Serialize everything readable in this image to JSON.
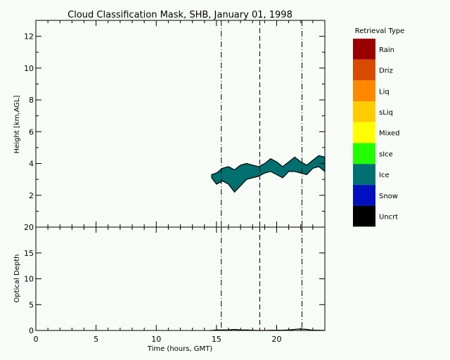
{
  "chart_data": [
    {
      "type": "heatmap",
      "title": "Cloud Classification Mask, SHB, January 01, 1998",
      "xlabel": "",
      "ylabel": "Height [km,AGL]",
      "xlim": [
        0,
        24
      ],
      "ylim": [
        0,
        13
      ],
      "yticks": [
        2,
        4,
        6,
        8,
        10,
        12
      ],
      "legend_title": "Retrieval Type",
      "legend": [
        {
          "label": "Rain",
          "color": "#9a0000"
        },
        {
          "label": "Driz",
          "color": "#d84a00"
        },
        {
          "label": "Liq",
          "color": "#ff8800"
        },
        {
          "label": "sLiq",
          "color": "#ffcc00"
        },
        {
          "label": "Mixed",
          "color": "#ffff00"
        },
        {
          "label": "sIce",
          "color": "#22ff00"
        },
        {
          "label": "Ice",
          "color": "#007070"
        },
        {
          "label": "Snow",
          "color": "#0010c0"
        },
        {
          "label": "Uncrt",
          "color": "#000000"
        }
      ],
      "cloud_class": "Ice",
      "cloud_top_km": [
        [
          14.6,
          3.3
        ],
        [
          15.0,
          3.4
        ],
        [
          15.5,
          3.7
        ],
        [
          16.0,
          3.8
        ],
        [
          16.5,
          3.6
        ],
        [
          17.0,
          3.9
        ],
        [
          17.5,
          4.0
        ],
        [
          18.0,
          3.9
        ],
        [
          18.5,
          3.8
        ],
        [
          19.0,
          4.0
        ],
        [
          19.5,
          4.3
        ],
        [
          20.0,
          4.1
        ],
        [
          20.5,
          3.8
        ],
        [
          21.0,
          4.1
        ],
        [
          21.5,
          4.4
        ],
        [
          22.0,
          4.1
        ],
        [
          22.5,
          3.9
        ],
        [
          23.0,
          4.2
        ],
        [
          23.5,
          4.5
        ],
        [
          24.0,
          4.4
        ]
      ],
      "cloud_base_km": [
        [
          14.6,
          3.1
        ],
        [
          15.0,
          2.7
        ],
        [
          15.5,
          2.9
        ],
        [
          16.0,
          2.7
        ],
        [
          16.5,
          2.2
        ],
        [
          17.0,
          2.6
        ],
        [
          17.5,
          3.0
        ],
        [
          18.0,
          3.1
        ],
        [
          18.5,
          3.2
        ],
        [
          19.0,
          3.4
        ],
        [
          19.5,
          3.5
        ],
        [
          20.0,
          3.3
        ],
        [
          20.5,
          3.1
        ],
        [
          21.0,
          3.5
        ],
        [
          21.5,
          3.5
        ],
        [
          22.0,
          3.4
        ],
        [
          22.5,
          3.3
        ],
        [
          23.0,
          3.7
        ],
        [
          23.5,
          3.8
        ],
        [
          24.0,
          3.5
        ]
      ],
      "dashdot_lines_x": [
        15.4,
        22.1
      ],
      "dashed_lines_x": [
        18.6
      ]
    },
    {
      "type": "line",
      "title": "",
      "xlabel": "Time (hours, GMT)",
      "ylabel": "Optical Depth",
      "xlim": [
        0,
        24
      ],
      "ylim": [
        0,
        20
      ],
      "xticks": [
        0,
        5,
        10,
        15,
        20
      ],
      "yticks": [
        0,
        5,
        10,
        15,
        20
      ],
      "series": [
        {
          "x": [
            14.5,
            15.0,
            15.5,
            16.0,
            16.5,
            17.0,
            17.5,
            18.0,
            18.5,
            19.0,
            19.5,
            20.0,
            20.5,
            21.0,
            21.5,
            22.0,
            22.5,
            23.0,
            23.5,
            24.0
          ],
          "y": [
            0,
            0.1,
            0.1,
            0.1,
            0.2,
            0.1,
            0.1,
            0.05,
            0,
            0,
            0.05,
            0.05,
            0.05,
            0.1,
            0.2,
            0.3,
            0.2,
            0.05,
            0.05,
            0
          ]
        }
      ],
      "dashdot_lines_x": [
        15.4,
        22.1
      ],
      "dashed_lines_x": [
        18.6
      ]
    }
  ]
}
